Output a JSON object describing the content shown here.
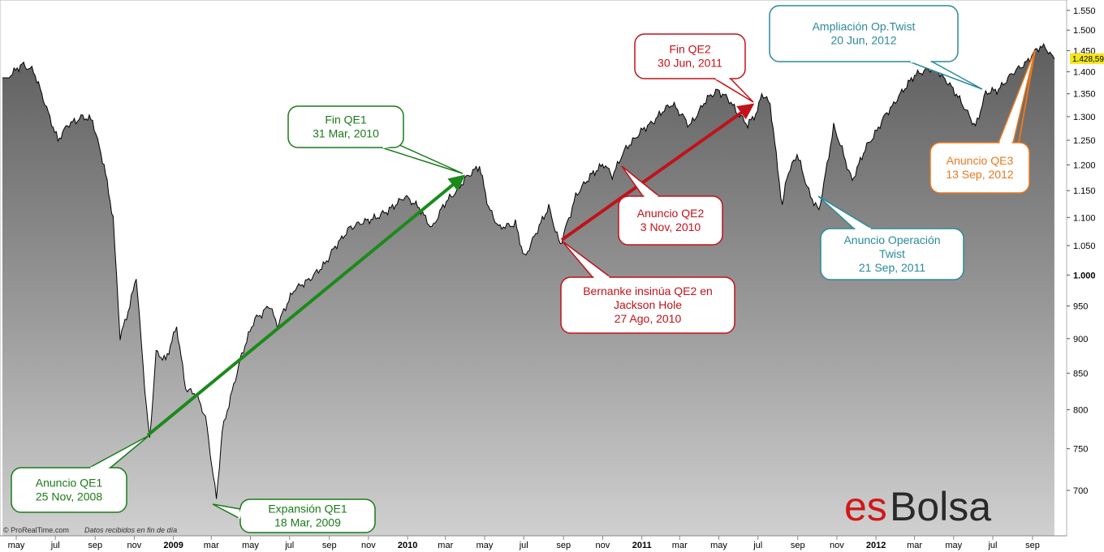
{
  "chart_data": {
    "type": "area",
    "y_axis": {
      "ticks": [
        "1.550",
        "1.500",
        "1.450",
        "1.400",
        "1.350",
        "1.300",
        "1.250",
        "1.200",
        "1.150",
        "1.100",
        "1.050",
        "1.000",
        "950",
        "900",
        "850",
        "800",
        "750",
        "700"
      ],
      "bold_ticks": [
        "1.000"
      ],
      "scale": "log",
      "range": [
        660,
        1560
      ]
    },
    "x_axis": {
      "ticks": [
        "may",
        "jul",
        "sep",
        "nov",
        "2009",
        "mar",
        "may",
        "jul",
        "sep",
        "nov",
        "2010",
        "mar",
        "may",
        "jul",
        "sep",
        "nov",
        "2011",
        "mar",
        "may",
        "jul",
        "sep",
        "nov",
        "2012",
        "mar",
        "may",
        "jul",
        "sep"
      ],
      "bold_ticks": [
        "2009",
        "2010",
        "2011",
        "2012"
      ]
    },
    "series": [
      {
        "dates": [
          "2008-04-20",
          "2008-05-10",
          "2008-05-28",
          "2008-06-15",
          "2008-07-05",
          "2008-07-20",
          "2008-08-10",
          "2008-08-28",
          "2008-09-15",
          "2008-09-29",
          "2008-10-10",
          "2008-10-25",
          "2008-11-04",
          "2008-11-20",
          "2008-11-25",
          "2008-12-05",
          "2008-12-20",
          "2009-01-06",
          "2009-01-20",
          "2009-02-05",
          "2009-02-20",
          "2009-03-09",
          "2009-03-18",
          "2009-03-26",
          "2009-04-15",
          "2009-05-08",
          "2009-06-01",
          "2009-06-12",
          "2009-07-10",
          "2009-07-31",
          "2009-08-25",
          "2009-09-18",
          "2009-10-02",
          "2009-10-19",
          "2009-11-10",
          "2009-12-01",
          "2009-12-28",
          "2010-01-19",
          "2010-02-08",
          "2010-02-25",
          "2010-03-31",
          "2010-04-23",
          "2010-05-07",
          "2010-05-25",
          "2010-06-18",
          "2010-07-02",
          "2010-07-20",
          "2010-08-09",
          "2010-08-27",
          "2010-09-20",
          "2010-10-15",
          "2010-11-03",
          "2010-11-16",
          "2010-12-10",
          "2011-01-10",
          "2011-02-18",
          "2011-03-16",
          "2011-04-08",
          "2011-04-29",
          "2011-05-20",
          "2011-06-15",
          "2011-06-30",
          "2011-07-07",
          "2011-07-20",
          "2011-08-08",
          "2011-08-15",
          "2011-08-31",
          "2011-09-21",
          "2011-10-04",
          "2011-10-27",
          "2011-11-25",
          "2011-12-15",
          "2012-01-10",
          "2012-02-03",
          "2012-03-01",
          "2012-04-02",
          "2012-04-20",
          "2012-05-18",
          "2012-06-04",
          "2012-06-20",
          "2012-07-10",
          "2012-08-01",
          "2012-08-20",
          "2012-09-13",
          "2012-09-21",
          "2012-10-05"
        ],
        "values": [
          1390,
          1420,
          1400,
          1330,
          1250,
          1280,
          1300,
          1290,
          1200,
          1100,
          900,
          950,
          1000,
          800,
          760,
          880,
          870,
          920,
          830,
          820,
          790,
          690,
          770,
          800,
          870,
          930,
          950,
          920,
          980,
          990,
          1020,
          1060,
          1080,
          1090,
          1100,
          1110,
          1140,
          1120,
          1080,
          1120,
          1170,
          1200,
          1120,
          1080,
          1090,
          1030,
          1070,
          1120,
          1050,
          1140,
          1180,
          1200,
          1180,
          1240,
          1280,
          1330,
          1280,
          1330,
          1360,
          1330,
          1280,
          1310,
          1350,
          1330,
          1120,
          1180,
          1220,
          1140,
          1110,
          1280,
          1170,
          1230,
          1290,
          1340,
          1390,
          1410,
          1380,
          1320,
          1280,
          1350,
          1360,
          1400,
          1420,
          1460,
          1460,
          1430
        ]
      }
    ],
    "last_value_label": "1.428,59",
    "annotations": [
      {
        "id": "qe1-announce",
        "lines": [
          "Anuncio QE1",
          "25 Nov, 2008"
        ],
        "color": "#1b7a1b"
      },
      {
        "id": "qe1-expansion",
        "lines": [
          "Expansión QE1",
          "18 Mar, 2009"
        ],
        "color": "#1b7a1b"
      },
      {
        "id": "qe1-end",
        "lines": [
          "Fin QE1",
          "31 Mar, 2010"
        ],
        "color": "#1b7a1b"
      },
      {
        "id": "bernanke",
        "lines": [
          "Bernanke insinúa QE2 en",
          "Jackson Hole",
          "27 Ago, 2010"
        ],
        "color": "#c0121a"
      },
      {
        "id": "qe2-announce",
        "lines": [
          "Anuncio QE2",
          "3 Nov, 2010"
        ],
        "color": "#c0121a"
      },
      {
        "id": "qe2-end",
        "lines": [
          "Fin QE2",
          "30 Jun, 2011"
        ],
        "color": "#c0121a"
      },
      {
        "id": "twist-announce",
        "lines": [
          "Anuncio Operación",
          "Twist",
          "21 Sep, 2011"
        ],
        "color": "#2a8a9a"
      },
      {
        "id": "twist-extension",
        "lines": [
          "Ampliación Op.Twist",
          "20 Jun, 2012"
        ],
        "color": "#2a8a9a"
      },
      {
        "id": "qe3-announce",
        "lines": [
          "Anuncio QE3",
          "13 Sep, 2012"
        ],
        "color": "#e8781e"
      }
    ]
  },
  "footer": {
    "credit": "© ProRealTime.com",
    "note": "Datos recibidos en fin de día"
  },
  "logo": {
    "prefix": "es",
    "name": "Bolsa"
  }
}
